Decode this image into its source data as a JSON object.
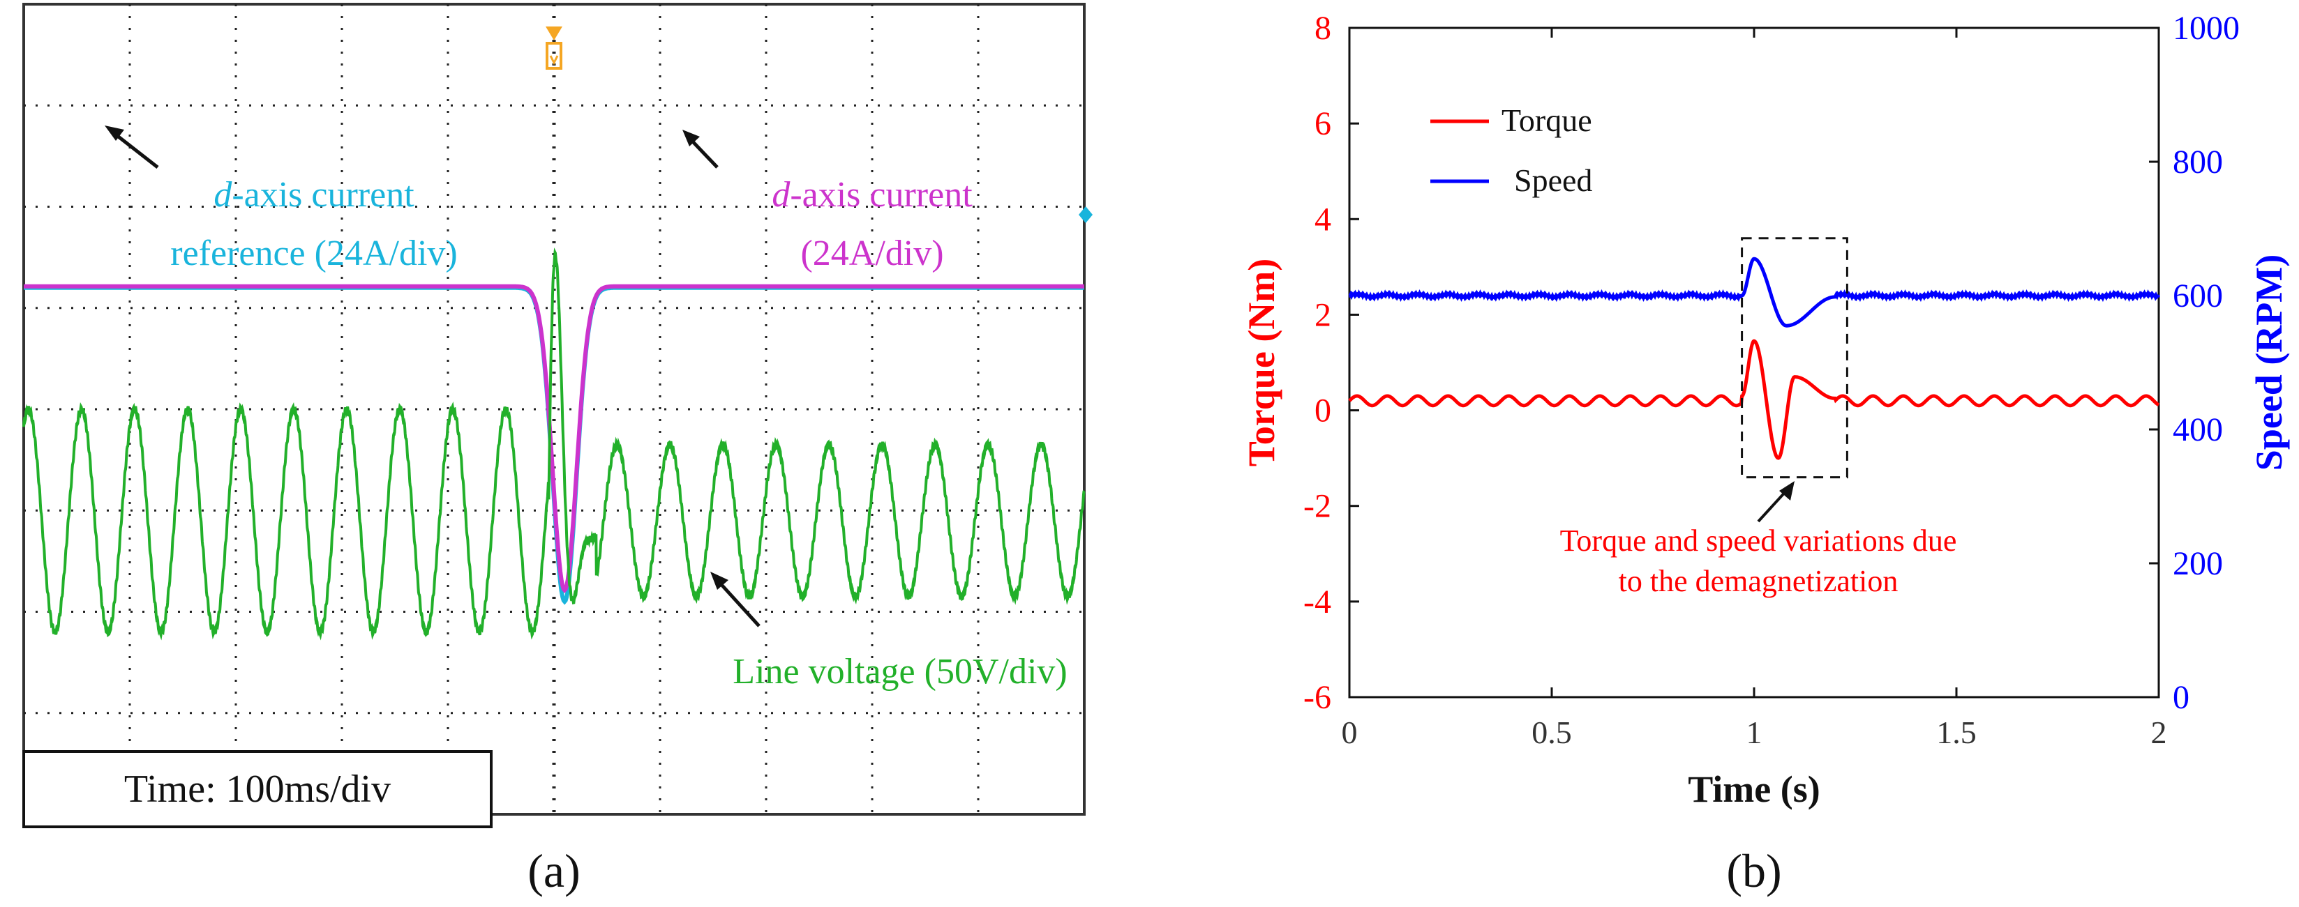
{
  "panels": {
    "a": {
      "label": "(a)"
    },
    "b": {
      "label": "(b)"
    }
  },
  "colors": {
    "green": "#22b02a",
    "cyan": "#19b4dc",
    "magenta": "#cc33cc",
    "red": "#ff0000",
    "blue": "#0000ff",
    "grid_dot": "#222222"
  },
  "chart_data": [
    {
      "type": "line",
      "id": "a",
      "title": "",
      "time_scale": "Time: 100ms/div",
      "divisions": {
        "x": 10,
        "y": 8
      },
      "x_range_s": [
        0,
        1.0
      ],
      "series": [
        {
          "name": "d-axis current reference (24A/div)",
          "color": "#19b4dc",
          "level_div": 5.0,
          "dip_center_s": 0.51,
          "dip_depth_div": 3.1
        },
        {
          "name": "d-axis current (24A/div)",
          "color": "#cc33cc",
          "level_div": 5.0,
          "dip_center_s": 0.51,
          "dip_depth_div": 3.0
        },
        {
          "name": "Line voltage (50V/div)",
          "color": "#22b02a",
          "before": {
            "amplitude_div": 1.1,
            "freq_hz": 20
          },
          "after": {
            "amplitude_div": 0.75,
            "freq_hz": 20
          },
          "transient_s": 0.5
        }
      ],
      "annotations": [
        {
          "prefix": "d",
          "text": "-axis current",
          "line2": "reference  (24A/div)",
          "color": "#19b4dc"
        },
        {
          "prefix": "d",
          "text": "-axis current",
          "line2": "(24A/div)",
          "color": "#cc33cc"
        },
        {
          "text": "Line voltage (50V/div)",
          "color": "#22b02a"
        }
      ]
    },
    {
      "type": "line",
      "id": "b",
      "xlabel": "Time (s)",
      "ylabel_left": "Torque (Nm)",
      "ylabel_right": "Speed (RPM)",
      "xlim": [
        0,
        2
      ],
      "ylim_left": [
        -6,
        8
      ],
      "ylim_right": [
        0,
        1000
      ],
      "x_ticks": [
        0,
        0.5,
        1,
        1.5,
        2
      ],
      "x_tick_labels": [
        "0",
        "0.5",
        "1",
        "1.5",
        "2"
      ],
      "y_left_ticks": [
        -6,
        -4,
        -2,
        0,
        2,
        4,
        6,
        8
      ],
      "y_left_tick_labels": [
        "-6",
        "-4",
        "-2",
        "0",
        "2",
        "4",
        "6",
        "8"
      ],
      "y_right_ticks": [
        0,
        200,
        400,
        600,
        800,
        1000
      ],
      "y_right_tick_labels": [
        "0",
        "200",
        "400",
        "600",
        "800",
        "1000"
      ],
      "series": [
        {
          "name": "Torque",
          "color": "#ff0000",
          "axis": "left",
          "baseline": 0.2,
          "ripple": 0.1,
          "event": [
            [
              0.97,
              0.3
            ],
            [
              1.0,
              1.45
            ],
            [
              1.06,
              -1.0
            ],
            [
              1.1,
              0.7
            ],
            [
              1.2,
              0.25
            ]
          ]
        },
        {
          "name": "Speed",
          "color": "#0000ff",
          "axis": "right",
          "baseline": 600,
          "ripple": 2,
          "event": [
            [
              0.97,
              600
            ],
            [
              1.0,
              655
            ],
            [
              1.08,
              555
            ],
            [
              1.2,
              598
            ]
          ]
        }
      ],
      "legend": [
        "Torque",
        "Speed"
      ],
      "legend_position": "top-left",
      "annotation": {
        "line1": "Torque and speed variations due",
        "line2": "to the demagnetization"
      },
      "highlight_x": [
        0.97,
        1.23
      ],
      "highlight_y": [
        -1.4,
        3.6
      ]
    }
  ]
}
